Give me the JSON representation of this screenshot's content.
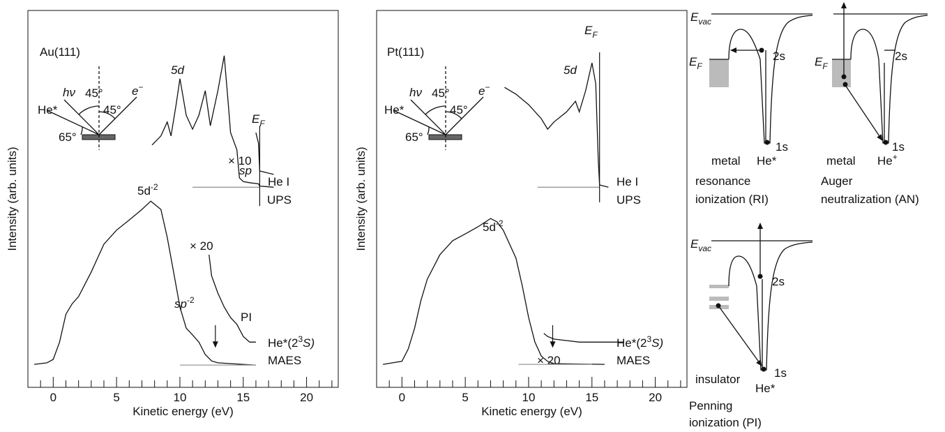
{
  "chart_data": [
    {
      "type": "line",
      "xlabel": "Kinetic energy (eV)",
      "ylabel": "Intensity (arb. units)",
      "xlim": [
        -2,
        22.5
      ],
      "ylim": [
        0,
        100
      ],
      "xticks": [
        0,
        5,
        10,
        15,
        20
      ],
      "xticks_minor": [
        -1,
        1,
        2,
        3,
        4,
        6,
        7,
        8,
        9,
        11,
        12,
        13,
        14,
        16,
        17,
        18,
        19,
        21,
        22
      ],
      "series": [
        {
          "color": "#111111",
          "x": [
            -1.5,
            -0.5,
            0,
            0.5,
            1,
            1.5,
            2,
            3,
            4,
            5,
            6,
            7,
            7.7,
            8.5,
            9,
            9.5,
            10,
            10.5,
            11,
            11.5,
            12,
            12.5,
            13,
            15,
            16
          ],
          "values": [
            6.1,
            6.5,
            7.4,
            12,
            19.4,
            22.2,
            24.1,
            30.6,
            38,
            41.7,
            44.4,
            47.2,
            49.4,
            47.2,
            39.8,
            30.6,
            21.3,
            15.7,
            13.9,
            12,
            8.7,
            7,
            6.5,
            6.1,
            5.9
          ]
        },
        {
          "color": "#111111",
          "x": [
            12.3,
            12.5,
            13,
            13.5,
            14,
            14.5,
            15,
            15.5,
            16
          ],
          "values": [
            35.2,
            29.6,
            25,
            21.3,
            18.5,
            16.7,
            13.5,
            12,
            12
          ]
        },
        {
          "color": "#999999",
          "x": [
            10,
            16
          ],
          "values": [
            5.9,
            5.9
          ]
        },
        {
          "color": "#111111",
          "x": [
            7.8,
            8.5,
            9,
            9.3,
            9.7,
            10,
            10.5,
            11,
            11.5,
            12,
            12.4,
            13,
            13.5,
            13.8,
            14,
            14.5,
            14.7,
            15,
            15.5,
            16.2,
            16.3,
            17.4
          ],
          "values": [
            64.3,
            66.7,
            70.4,
            66.7,
            75,
            81.9,
            72.2,
            68.5,
            72.2,
            78.7,
            69.4,
            78.7,
            88,
            75.9,
            67.6,
            63,
            55.6,
            54.6,
            54.3,
            54,
            53.4,
            53.1
          ]
        },
        {
          "color": "#111111",
          "x": [
            16,
            16.2,
            16.3,
            17.4
          ],
          "values": [
            67.6,
            64.8,
            57.4,
            56.5
          ]
        },
        {
          "color": "#999999",
          "x": [
            11,
            16.3
          ],
          "values": [
            53.1,
            53.1
          ]
        }
      ],
      "ef_line": {
        "x": 16.3,
        "y": [
          48.1,
          69.4
        ]
      },
      "arrow": {
        "x": 12.8,
        "y": [
          16.5,
          10.7
        ]
      },
      "texts": [
        "Au(111)",
        "5d",
        "E",
        "F",
        "× 10",
        "sp",
        "He I",
        "UPS",
        "5d",
        "-2",
        "× 20",
        "sp",
        "-2",
        "PI",
        "He*(2",
        "3",
        "S)",
        "MAES"
      ],
      "geometry": [
        "hν",
        "45°",
        "e",
        "−",
        "He*",
        "45°",
        "65°"
      ]
    },
    {
      "type": "line",
      "xlabel": "Kinetic energy (eV)",
      "ylabel": "Intensity (arb. units)",
      "xlim": [
        -2,
        22.5
      ],
      "ylim": [
        0,
        100
      ],
      "xticks": [
        0,
        5,
        10,
        15,
        20
      ],
      "xticks_minor": [
        -1,
        1,
        2,
        3,
        4,
        6,
        7,
        8,
        9,
        11,
        12,
        13,
        14,
        16,
        17,
        18,
        19,
        21,
        22
      ],
      "series": [
        {
          "color": "#111111",
          "x": [
            -1.5,
            0,
            0.5,
            1,
            1.5,
            2,
            3,
            4,
            5,
            6,
            7,
            7.5,
            8,
            9,
            9.5,
            10,
            10.5,
            11,
            11.5,
            12,
            16
          ],
          "values": [
            6.1,
            6.9,
            10.2,
            15.7,
            23.1,
            28.7,
            35.2,
            38.9,
            40.7,
            42.6,
            44.8,
            43.9,
            41.7,
            34.3,
            26.9,
            18.5,
            12,
            8.3,
            6.9,
            6.3,
            6.1
          ]
        },
        {
          "color": "#111111",
          "x": [
            11.2,
            11.5,
            12,
            13,
            14,
            17.5
          ],
          "values": [
            14.3,
            13.5,
            12.8,
            12.4,
            12,
            12
          ]
        },
        {
          "color": "#999999",
          "x": [
            9.2,
            15
          ],
          "values": [
            6.1,
            6.1
          ]
        },
        {
          "color": "#111111",
          "x": [
            8.1,
            9,
            10,
            11,
            11.5,
            12,
            13,
            13.7,
            14,
            14.5,
            15,
            15.3,
            15.5,
            15.6,
            16.3
          ],
          "values": [
            79.6,
            77.8,
            75,
            71.3,
            68.5,
            70.4,
            73.1,
            75.9,
            73.1,
            78.7,
            86.1,
            80.6,
            60,
            53.7,
            53.1
          ]
        },
        {
          "color": "#999999",
          "x": [
            10.7,
            15.6
          ],
          "values": [
            53.1,
            53.1
          ]
        }
      ],
      "ef_line": {
        "x": 15.6,
        "y": [
          49.1,
          88.9
        ]
      },
      "arrow": {
        "x": 11.9,
        "y": [
          16.5,
          10.7
        ]
      },
      "texts": [
        "Pt(111)",
        "5d",
        "E",
        "F",
        "He I",
        "UPS",
        "5d",
        "-2",
        "× 20",
        "He*(2",
        "3",
        "S)",
        "MAES"
      ],
      "geometry": [
        "hν",
        "45°",
        "e",
        "−",
        "He*",
        "45°",
        "65°"
      ]
    }
  ],
  "diagrams": [
    {
      "texts": [
        "E",
        "vac",
        "E",
        "F",
        "2s",
        "1s",
        "metal",
        "He*",
        "resonance",
        "ionization (RI)"
      ]
    },
    {
      "texts": [
        "E",
        "F",
        "2s",
        "1s",
        "metal",
        "He",
        "+",
        "Auger",
        "neutralization (AN)"
      ]
    },
    {
      "texts": [
        "E",
        "vac",
        "2s",
        "1s",
        "insulator",
        "He*",
        "Penning",
        "ionization (PI)"
      ]
    }
  ]
}
